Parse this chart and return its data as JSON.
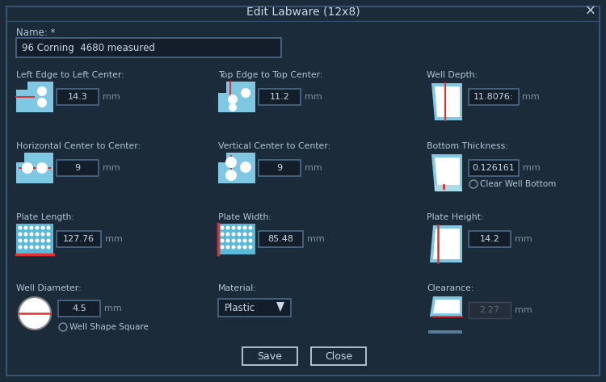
{
  "bg_color": "#1c2b3a",
  "panel_bg": "#1c2b3a",
  "border_color": "#3a5572",
  "title": "Edit Labware (12x8)",
  "title_color": "#c8d8e8",
  "close_x": "×",
  "name_label": "Name: *",
  "name_value": "96 Corning  4680 measured",
  "input_bg": "#141e2a",
  "input_border": "#4a6a8a",
  "input_text": "#c8d8e8",
  "label_color": "#b0c4d8",
  "mm_color": "#8090a0",
  "icon_blue": "#7ec8e3",
  "icon_dark": "#1c2b3a",
  "red_line": "#e03030",
  "white": "#ffffff",
  "button_bg": "#1c2b3a",
  "button_border": "#c8d8e8",
  "button_text": "#c8d8e8",
  "radio_bg": "#1c2b3a",
  "radio_border": "#8090a0",
  "gray_input_bg": "#242e3a",
  "gray_input_text": "#606878",
  "gray_input_border": "#404858"
}
